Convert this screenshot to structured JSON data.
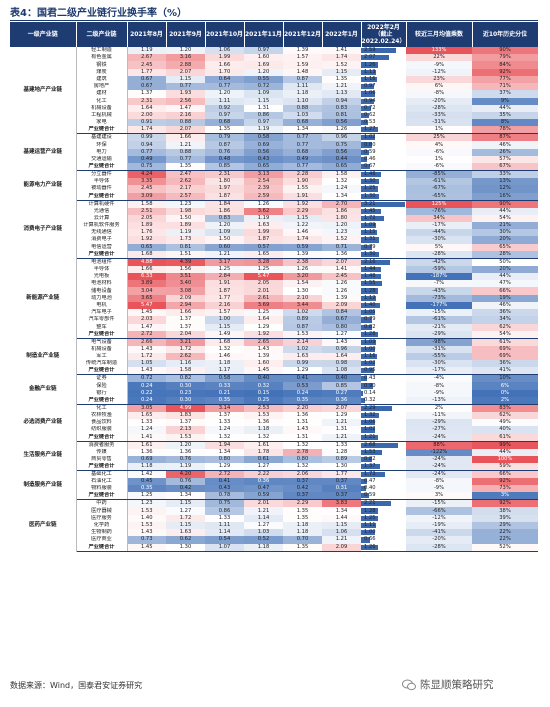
{
  "title": "表4：国君二级产业链行业换手率（%）",
  "headers": [
    "一级产业链",
    "二级产业链",
    "2021年8月",
    "2021年9月",
    "2021年10月",
    "2021年11月",
    "2021年12月",
    "2022年1月",
    "2022年2月（截止2022.02.24）",
    "较近三月均值乘数",
    "近10年历史分位"
  ],
  "sectors": [
    {
      "name": "基建地产产业链",
      "rows": [
        [
          "轻工制造",
          "1.19",
          "1.20",
          "1.06",
          "0.97",
          "1.39",
          "1.41",
          "2.59",
          "133%",
          "90%"
        ],
        [
          "有色金属",
          "2.67",
          "3.16",
          "1.99",
          "1.60",
          "1.57",
          "1.74",
          "2.07",
          "22%",
          "79%"
        ],
        [
          "钢铁",
          "2.45",
          "2.88",
          "1.66",
          "1.69",
          "1.59",
          "1.52",
          "1.26",
          "-9%",
          "84%"
        ],
        [
          "煤炭",
          "1.77",
          "2.07",
          "1.70",
          "1.20",
          "1.48",
          "1.15",
          "1.13",
          "-12%",
          "92%"
        ],
        [
          "建筑",
          "0.67",
          "1.15",
          "0.64",
          "0.55",
          "0.87",
          "1.35",
          "1.16",
          "23%",
          "77%"
        ],
        [
          "房地产",
          "0.67",
          "0.77",
          "0.77",
          "0.72",
          "1.11",
          "1.21",
          "0.97",
          "6%",
          "71%"
        ],
        [
          "建材",
          "1.37",
          "1.93",
          "1.20",
          "1.09",
          "1.18",
          "1.13",
          "1.06",
          "-8%",
          "37%"
        ],
        [
          "化工",
          "2.31",
          "2.56",
          "1.11",
          "1.15",
          "1.10",
          "0.94",
          "0.94",
          "-20%",
          "9%"
        ],
        [
          "机械设备",
          "1.64",
          "1.47",
          "0.92",
          "1.31",
          "0.88",
          "0.83",
          "0.72",
          "-28%",
          "44%"
        ],
        [
          "工程机械",
          "2.00",
          "2.16",
          "0.97",
          "0.86",
          "1.03",
          "0.81",
          "0.62",
          "-33%",
          "35%"
        ],
        [
          "家电",
          "0.91",
          "0.88",
          "0.68",
          "0.97",
          "0.68",
          "0.56",
          "0.53",
          "-31%",
          "8%"
        ],
        [
          "产业链合计",
          "1.74",
          "2.07",
          "1.35",
          "1.19",
          "1.34",
          "1.26",
          "1.27",
          "1%",
          "78%"
        ]
      ]
    },
    {
      "name": "基建运营产业链",
      "rows": [
        [
          "基建建设",
          "0.99",
          "1.66",
          "0.79",
          "0.58",
          "0.77",
          "0.96",
          "1.02",
          "25%",
          "87%"
        ],
        [
          "环保",
          "0.94",
          "1.21",
          "0.87",
          "0.69",
          "0.77",
          "0.75",
          "0.80",
          "4%",
          "46%"
        ],
        [
          "电力",
          "0.77",
          "0.88",
          "0.76",
          "0.56",
          "0.68",
          "0.56",
          "0.59",
          "-6%",
          "26%"
        ],
        [
          "交通运输",
          "0.49",
          "0.77",
          "0.48",
          "0.43",
          "0.49",
          "0.44",
          "0.46",
          "1%",
          "57%"
        ],
        [
          "产业链合计",
          "0.75",
          "1.35",
          "0.85",
          "0.65",
          "0.77",
          "0.65",
          "0.67",
          "-6%",
          "67%"
        ]
      ]
    },
    {
      "name": "能源电力产业链",
      "rows": [
        [
          "分立器件",
          "4.24",
          "2.47",
          "2.31",
          "3.13",
          "2.28",
          "1.58",
          "1.48",
          "-85%",
          "33%"
        ],
        [
          "半导体",
          "3.35",
          "2.62",
          "1.80",
          "2.54",
          "1.90",
          "1.32",
          "1.30",
          "-61%",
          "13%"
        ],
        [
          "被动器件",
          "2.45",
          "2.17",
          "1.97",
          "2.39",
          "1.55",
          "1.24",
          "1.25",
          "-67%",
          "12%"
        ],
        [
          "产业链合计",
          "3.09",
          "2.57",
          "1.87",
          "2.59",
          "1.91",
          "1.34",
          "1.30",
          "-65%",
          "16%"
        ]
      ]
    },
    {
      "name": "消费电子产业链",
      "rows": [
        [
          "计算机硬件",
          "1.58",
          "1.23",
          "1.84",
          "1.26",
          "1.92",
          "2.70",
          "3.21",
          "125%",
          "90%"
        ],
        [
          "光通信",
          "2.51",
          "1.98",
          "1.86",
          "3.62",
          "2.29",
          "1.86",
          "1.45",
          "-76%",
          "44%"
        ],
        [
          "云计算",
          "2.05",
          "1.50",
          "0.83",
          "1.19",
          "1.15",
          "1.80",
          "1.72",
          "34%",
          "54%"
        ],
        [
          "计算机软件服务",
          "1.89",
          "1.89",
          "1.20",
          "1.63",
          "1.22",
          "1.20",
          "1.09",
          "-17%",
          "21%"
        ],
        [
          "无线通信",
          "1.76",
          "1.19",
          "1.09",
          "1.99",
          "1.46",
          "1.23",
          "1.15",
          "-44%",
          "30%"
        ],
        [
          "消费电子",
          "1.92",
          "1.73",
          "1.50",
          "1.87",
          "1.74",
          "1.52",
          "1.31",
          "-30%",
          "20%"
        ],
        [
          "电信运营",
          "0.65",
          "0.81",
          "0.60",
          "0.57",
          "0.59",
          "0.71",
          "0.79",
          "5%",
          "65%"
        ],
        [
          "产业链合计",
          "1.68",
          "1.51",
          "1.21",
          "1.65",
          "1.39",
          "1.36",
          "1.30",
          "-28%",
          "28%"
        ]
      ]
    },
    {
      "name": "新能源产业链",
      "rows": [
        [
          "电池组件",
          "4.88",
          "4.39",
          "3.17",
          "3.28",
          "2.38",
          "2.07",
          "2.16",
          "-42%",
          "50%"
        ],
        [
          "半导体",
          "1.66",
          "1.56",
          "1.25",
          "1.25",
          "1.26",
          "1.41",
          "1.44",
          "-59%",
          "20%"
        ],
        [
          "光电板",
          "6.33",
          "3.51",
          "2.84",
          "5.47",
          "3.20",
          "2.45",
          "1.48",
          "-187%",
          "44%"
        ],
        [
          "电池材料",
          "3.89",
          "3.40",
          "1.91",
          "2.05",
          "1.54",
          "1.26",
          "1.55",
          "-7%",
          "47%"
        ],
        [
          "储电设备",
          "3.04",
          "3.08",
          "1.87",
          "2.01",
          "1.30",
          "1.26",
          "1.28",
          "-43%",
          "66%"
        ],
        [
          "动力电池",
          "3.65",
          "2.09",
          "1.77",
          "2.61",
          "2.10",
          "1.39",
          "1.12",
          "-73%",
          "19%"
        ],
        [
          "电机",
          "5.47",
          "2.94",
          "2.16",
          "3.69",
          "3.44",
          "2.09",
          "1.40",
          "-177%",
          "46%"
        ],
        [
          "汽车电子",
          "1.45",
          "1.66",
          "1.57",
          "1.25",
          "1.02",
          "0.84",
          "1.05",
          "-15%",
          "36%"
        ],
        [
          "汽车零部件",
          "2.03",
          "1.37",
          "1.00",
          "1.64",
          "0.89",
          "0.67",
          "0.79",
          "-61%",
          "34%"
        ],
        [
          "整车",
          "1.47",
          "1.37",
          "1.15",
          "1.29",
          "0.87",
          "0.80",
          "0.82",
          "-21%",
          "62%"
        ],
        [
          "产业链合计",
          "2.72",
          "2.04",
          "1.49",
          "1.92",
          "1.53",
          "1.27",
          "1.28",
          "-29%",
          "54%"
        ]
      ]
    },
    {
      "name": "制造业产业链",
      "rows": [
        [
          "电气设备",
          "2.66",
          "3.21",
          "1.68",
          "2.65",
          "2.14",
          "1.43",
          "1.09",
          "-98%",
          "61%"
        ],
        [
          "机械设备",
          "1.43",
          "1.72",
          "1.32",
          "1.43",
          "1.02",
          "0.96",
          "1.00",
          "-31%",
          "69%"
        ],
        [
          "军工",
          "1.72",
          "2.62",
          "1.46",
          "1.39",
          "1.63",
          "1.64",
          "1.16",
          "-55%",
          "69%"
        ],
        [
          "传统汽车制造",
          "1.05",
          "1.16",
          "1.18",
          "1.60",
          "0.99",
          "0.98",
          "1.02",
          "-30%",
          "36%"
        ],
        [
          "产业链合计",
          "1.43",
          "1.58",
          "1.17",
          "1.45",
          "1.29",
          "1.08",
          "0.95",
          "-17%",
          "41%"
        ]
      ]
    },
    {
      "name": "金融产业链",
      "rows": [
        [
          "证券",
          "0.72",
          "0.82",
          "0.58",
          "0.40",
          "0.41",
          "0.40",
          "0.43",
          "-4%",
          "10%"
        ],
        [
          "保险",
          "0.24",
          "0.30",
          "0.33",
          "0.32",
          "0.53",
          "0.85",
          "0.90",
          "-8%",
          "6%"
        ],
        [
          "银行",
          "0.22",
          "0.23",
          "0.21",
          "0.15",
          "0.24",
          "0.27",
          "0.14",
          "-9%",
          "0%"
        ],
        [
          "产业链合计",
          "0.24",
          "0.30",
          "0.35",
          "0.25",
          "0.35",
          "0.36",
          "0.32",
          "-13%",
          "2%"
        ]
      ]
    },
    {
      "name": "必选消费产业链",
      "rows": [
        [
          "化工",
          "3.05",
          "4.99",
          "3.14",
          "2.53",
          "2.20",
          "2.07",
          "2.29",
          "2%",
          "83%"
        ],
        [
          "农林牧渔",
          "1.65",
          "1.83",
          "1.37",
          "1.53",
          "1.36",
          "1.29",
          "1.32",
          "-11%",
          "62%"
        ],
        [
          "食品饮料",
          "1.33",
          "1.37",
          "1.33",
          "1.36",
          "1.31",
          "1.21",
          "1.06",
          "-29%",
          "49%"
        ],
        [
          "纺织服装",
          "1.24",
          "2.13",
          "1.24",
          "1.18",
          "1.43",
          "1.31",
          "1.02",
          "-27%",
          "40%"
        ],
        [
          "产业链合计",
          "1.41",
          "1.53",
          "1.32",
          "1.32",
          "1.31",
          "1.21",
          "1.21",
          "-24%",
          "61%"
        ]
      ]
    },
    {
      "name": "生活服务产业链",
      "rows": [
        [
          "消费者服务",
          "1.61",
          "1.20",
          "1.94",
          "1.61",
          "1.32",
          "1.33",
          "2.68",
          "88%",
          "99%"
        ],
        [
          "传媒",
          "1.36",
          "1.36",
          "1.34",
          "1.78",
          "2.78",
          "1.28",
          "1.53",
          "-122%",
          "44%"
        ],
        [
          "商贸零售",
          "0.69",
          "0.76",
          "0.80",
          "0.61",
          "0.80",
          "0.89",
          "0.82",
          "-24%",
          "100%"
        ],
        [
          "产业链合计",
          "1.18",
          "1.19",
          "1.29",
          "1.27",
          "1.32",
          "1.30",
          "1.37",
          "-24%",
          "59%"
        ]
      ]
    },
    {
      "name": "制造服务产业链",
      "rows": [
        [
          "基础化工",
          "1.42",
          "4.20",
          "2.72",
          "2.22",
          "2.06",
          "1.77",
          "1.73",
          "-24%",
          "66%"
        ],
        [
          "石油化工",
          "0.45",
          "0.76",
          "0.41",
          "0.36",
          "0.37",
          "0.37",
          "0.47",
          "-8%",
          "92%"
        ],
        [
          "物料服装",
          "0.35",
          "0.42",
          "0.43",
          "0.47",
          "0.42",
          "0.31",
          "0.40",
          "-9%",
          "73%"
        ],
        [
          "产业链合计",
          "1.25",
          "1.34",
          "0.78",
          "0.59",
          "0.37",
          "0.37",
          "0.59",
          "3%",
          "3%"
        ]
      ]
    },
    {
      "name": "医药产业链",
      "rows": [
        [
          "中药",
          "1.23",
          "1.15",
          "0.75",
          "2.01",
          "2.29",
          "3.83",
          "2.21",
          "-15%",
          "92%"
        ],
        [
          "医疗器械",
          "1.53",
          "1.27",
          "0.86",
          "1.21",
          "1.35",
          "1.34",
          "1.28",
          "-66%",
          "38%"
        ],
        [
          "医疗服务",
          "1.40",
          "1.72",
          "1.33",
          "1.14",
          "1.35",
          "1.44",
          "1.25",
          "-12%",
          "39%"
        ],
        [
          "化学药",
          "1.53",
          "1.15",
          "1.11",
          "1.27",
          "1.18",
          "1.15",
          "1.11",
          "-19%",
          "29%"
        ],
        [
          "生物制药",
          "1.43",
          "1.63",
          "1.14",
          "1.03",
          "1.18",
          "1.06",
          "1.00",
          "-41%",
          "22%"
        ],
        [
          "医疗商业",
          "0.73",
          "0.62",
          "0.54",
          "0.52",
          "0.70",
          "1.21",
          "0.66",
          "-20%",
          "22%"
        ],
        [
          "产业链合计",
          "1.45",
          "1.30",
          "1.07",
          "1.18",
          "1.35",
          "2.09",
          "1.26",
          "-28%",
          "52%"
        ]
      ]
    }
  ],
  "source": "数据来源：Wind，国泰君安证券研究",
  "watermark": "陈显顺策略研究",
  "colors": {
    "header_bg": "#1f3c72",
    "red": "#e8545a",
    "blue": "#3b67ad"
  }
}
